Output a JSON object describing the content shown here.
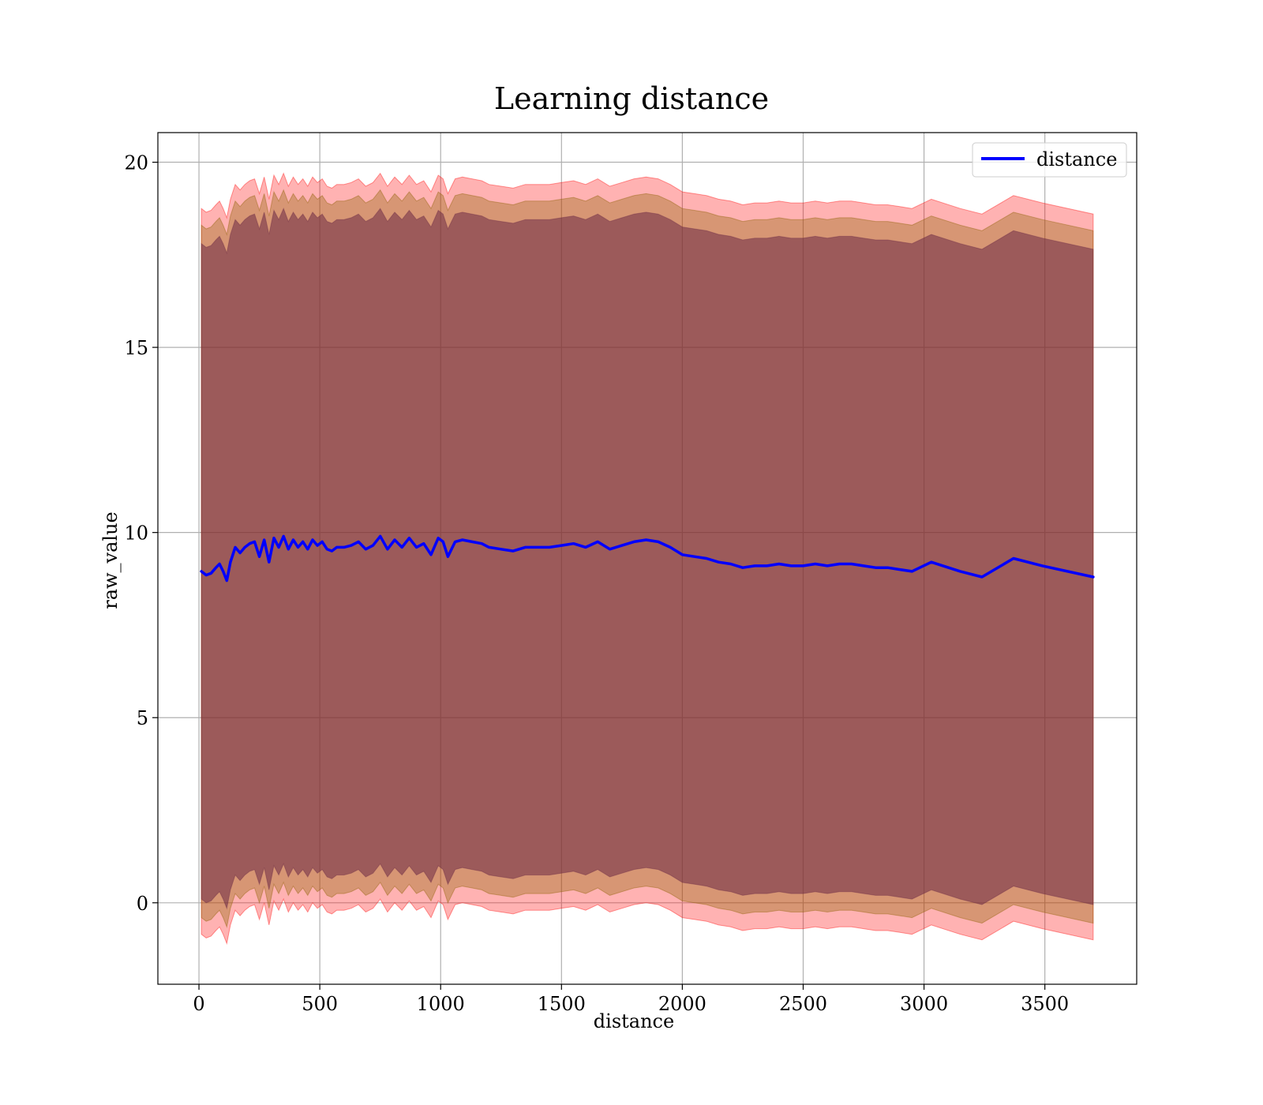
{
  "chart_data": {
    "type": "line",
    "title": "Learning distance",
    "xlabel": "distance",
    "ylabel": "raw_value",
    "xlim": [
      -170,
      3880
    ],
    "ylim": [
      -2.2,
      20.8
    ],
    "xticks": [
      0,
      500,
      1000,
      1500,
      2000,
      2500,
      3000,
      3500
    ],
    "yticks": [
      0,
      5,
      10,
      15,
      20
    ],
    "grid": true,
    "legend": {
      "position": "top-right",
      "entries": [
        "distance"
      ]
    },
    "colors": {
      "line": "#0000ff",
      "outer_band": "#ff0000",
      "inner_band": "#8b6000",
      "core_band": "#6b2a45"
    },
    "series": [
      {
        "name": "distance",
        "x": [
          10,
          30,
          50,
          70,
          85,
          100,
          115,
          130,
          150,
          170,
          190,
          210,
          230,
          250,
          270,
          290,
          310,
          330,
          350,
          370,
          390,
          410,
          430,
          450,
          470,
          490,
          510,
          530,
          550,
          570,
          600,
          630,
          660,
          690,
          720,
          750,
          780,
          810,
          840,
          870,
          900,
          930,
          960,
          990,
          1010,
          1030,
          1060,
          1090,
          1130,
          1170,
          1200,
          1250,
          1300,
          1350,
          1400,
          1450,
          1500,
          1550,
          1600,
          1650,
          1700,
          1750,
          1800,
          1850,
          1900,
          1950,
          2000,
          2050,
          2100,
          2150,
          2200,
          2250,
          2300,
          2350,
          2400,
          2450,
          2500,
          2550,
          2600,
          2650,
          2700,
          2750,
          2800,
          2850,
          2900,
          2950,
          3030,
          3150,
          3240,
          3370,
          3490,
          3700
        ],
        "y": [
          8.95,
          8.85,
          8.9,
          9.05,
          9.15,
          8.95,
          8.7,
          9.2,
          9.6,
          9.45,
          9.6,
          9.7,
          9.75,
          9.35,
          9.8,
          9.2,
          9.85,
          9.6,
          9.9,
          9.55,
          9.8,
          9.6,
          9.75,
          9.55,
          9.8,
          9.65,
          9.75,
          9.55,
          9.5,
          9.6,
          9.6,
          9.65,
          9.75,
          9.55,
          9.65,
          9.9,
          9.55,
          9.8,
          9.6,
          9.85,
          9.6,
          9.7,
          9.4,
          9.85,
          9.75,
          9.35,
          9.75,
          9.8,
          9.75,
          9.7,
          9.6,
          9.55,
          9.5,
          9.6,
          9.6,
          9.6,
          9.65,
          9.7,
          9.6,
          9.75,
          9.55,
          9.65,
          9.75,
          9.8,
          9.75,
          9.6,
          9.4,
          9.35,
          9.3,
          9.2,
          9.15,
          9.05,
          9.1,
          9.1,
          9.15,
          9.1,
          9.1,
          9.15,
          9.1,
          9.15,
          9.15,
          9.1,
          9.05,
          9.05,
          9.0,
          8.95,
          9.2,
          8.95,
          8.8,
          9.3,
          9.1,
          8.8
        ]
      }
    ],
    "bands": [
      {
        "name": "outer",
        "offset": 9.8
      },
      {
        "name": "inner",
        "offset": 9.35
      },
      {
        "name": "core",
        "offset": 8.85
      }
    ]
  }
}
